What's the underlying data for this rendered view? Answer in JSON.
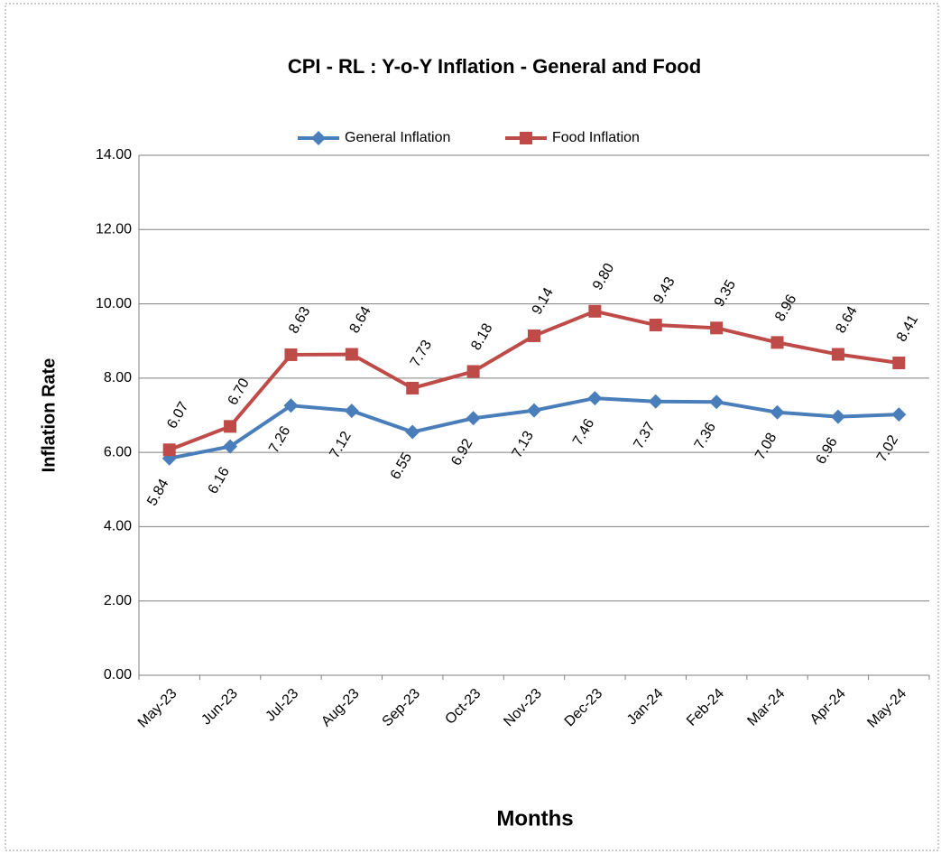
{
  "chart_data": {
    "type": "line",
    "title": "CPI - RL : Y-o-Y Inflation - General and Food",
    "x_label": "Months",
    "y_label": "Inflation Rate",
    "categories": [
      "May-23",
      "Jun-23",
      "Jul-23",
      "Aug-23",
      "Sep-23",
      "Oct-23",
      "Nov-23",
      "Dec-23",
      "Jan-24",
      "Feb-24",
      "Mar-24",
      "Apr-24",
      "May-24"
    ],
    "series": [
      {
        "name": "General Inflation",
        "color": "#4a7ebb",
        "marker": "diamond",
        "values": [
          5.84,
          6.16,
          7.26,
          7.12,
          6.55,
          6.92,
          7.13,
          7.46,
          7.37,
          7.36,
          7.08,
          6.96,
          7.02
        ],
        "value_labels": [
          "5.84",
          "6.16",
          "7.26",
          "7.12",
          "6.55",
          "6.92",
          "7.13",
          "7.46",
          "7.37",
          "7.36",
          "7.08",
          "6.96",
          "7.02"
        ]
      },
      {
        "name": "Food Inflation",
        "color": "#be4b48",
        "marker": "square",
        "values": [
          6.07,
          6.7,
          8.63,
          8.64,
          7.73,
          8.18,
          9.14,
          9.8,
          9.43,
          9.35,
          8.96,
          8.64,
          8.41
        ],
        "value_labels": [
          "6.07",
          "6.70",
          "8.63",
          "8.64",
          "7.73",
          "8.18",
          "9.14",
          "9.80",
          "9.43",
          "9.35",
          "8.96",
          "8.64",
          "8.41"
        ]
      }
    ],
    "ylim": [
      0,
      14
    ],
    "yticks": [
      {
        "value": 0,
        "label": "0.00"
      },
      {
        "value": 2,
        "label": "2.00"
      },
      {
        "value": 4,
        "label": "4.00"
      },
      {
        "value": 6,
        "label": "6.00"
      },
      {
        "value": 8,
        "label": "8.00"
      },
      {
        "value": 10,
        "label": "10.00"
      },
      {
        "value": 12,
        "label": "12.00"
      },
      {
        "value": 14,
        "label": "14.00"
      }
    ],
    "grid": true,
    "legend": "top"
  }
}
